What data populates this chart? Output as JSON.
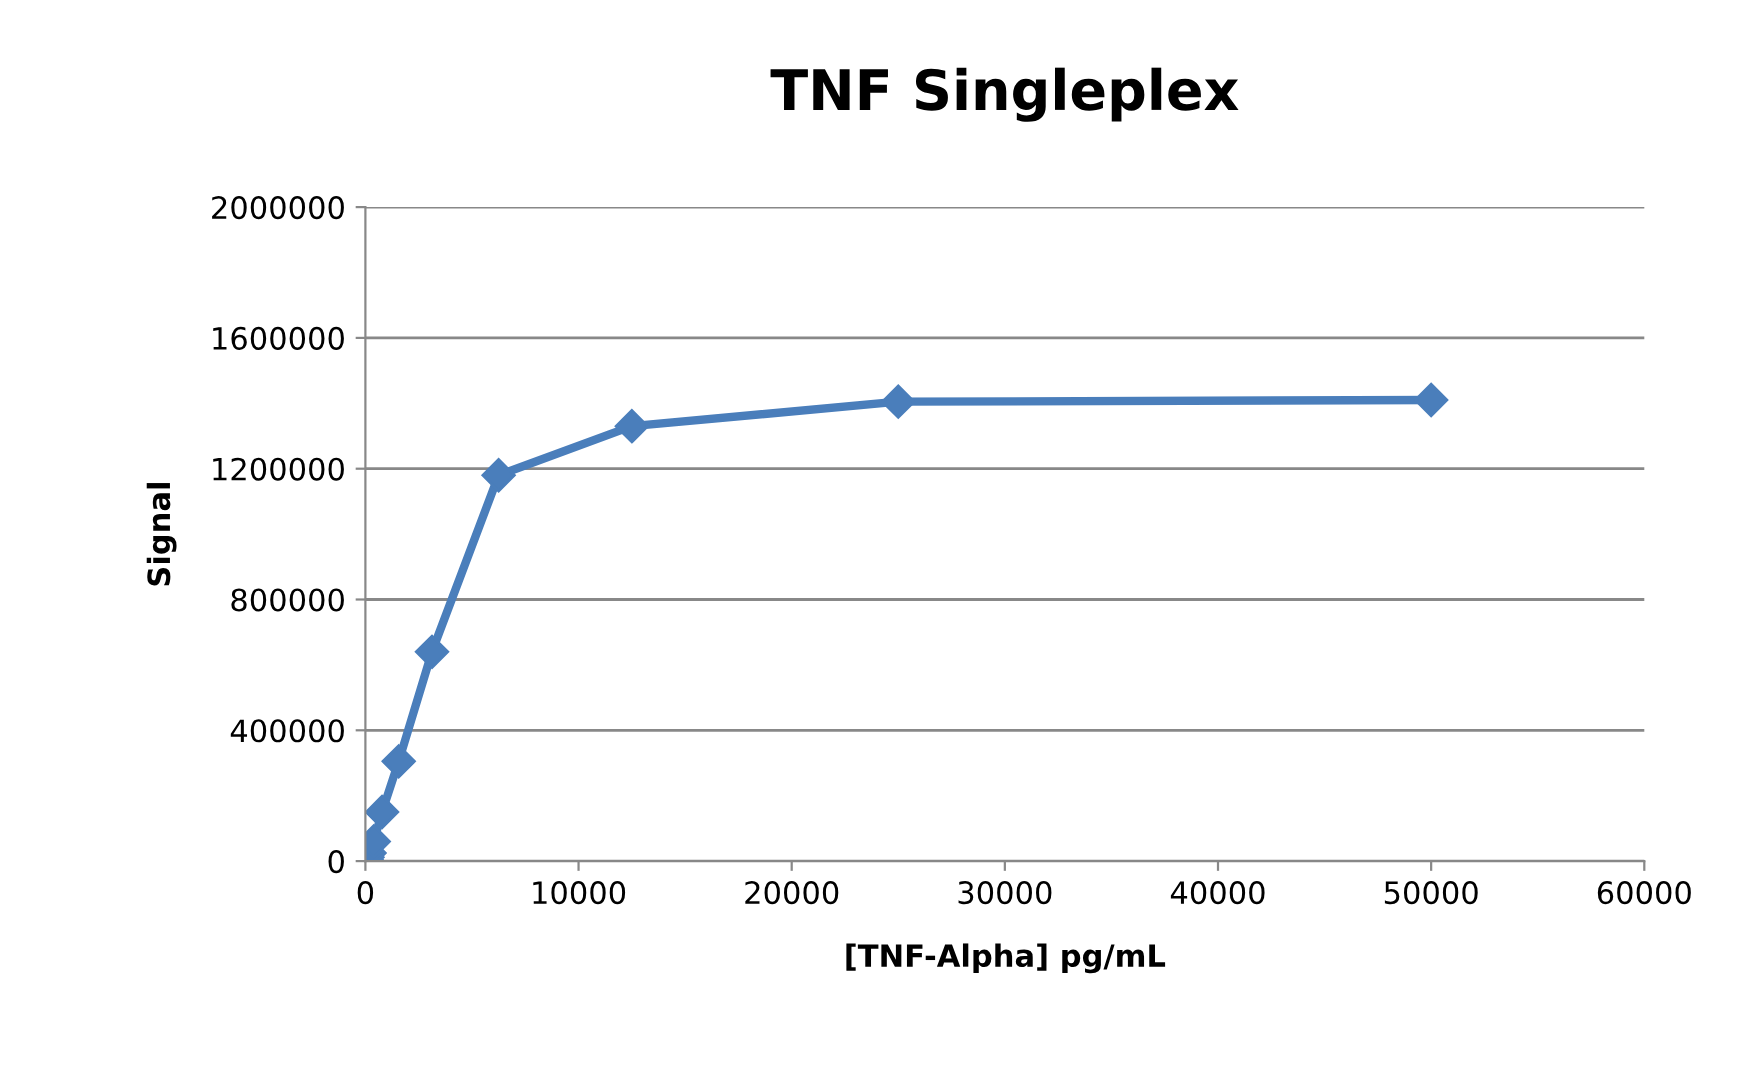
{
  "chart_data": {
    "type": "line",
    "title": "TNF Singleplex",
    "xlabel": "[TNF-Alpha] pg/mL",
    "ylabel": "Signal",
    "x": [
      0,
      48.8,
      97.7,
      195.3,
      390.6,
      781.25,
      1562.5,
      3125,
      6250,
      12500,
      25000,
      50000
    ],
    "series": [
      {
        "color": "#4a7ebb",
        "values": [
          0,
          5000,
          12000,
          25000,
          60000,
          150000,
          305000,
          640000,
          1180000,
          1330000,
          1405000,
          1410000
        ]
      }
    ],
    "xlim": [
      0,
      60000
    ],
    "xticks": [
      0,
      10000,
      20000,
      30000,
      40000,
      50000,
      60000
    ],
    "ylim": [
      0,
      2000000
    ],
    "yticks": [
      0,
      400000,
      800000,
      1200000,
      1600000,
      2000000
    ],
    "grid": "y",
    "legend": false,
    "marker": "diamond",
    "line_style": "solid"
  }
}
